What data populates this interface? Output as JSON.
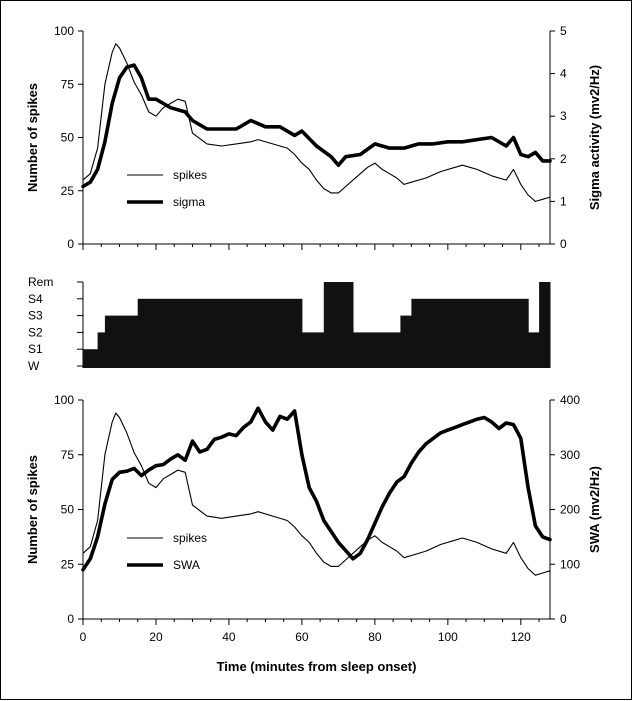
{
  "chart_data": [
    {
      "type": "line",
      "name": "top-panel",
      "xlim": [
        0,
        128
      ],
      "ylim_left": [
        0,
        100
      ],
      "ylim_right": [
        0,
        5
      ],
      "left_ticks": [
        "0",
        "25",
        "50",
        "75",
        "100"
      ],
      "right_ticks": [
        "0",
        "1",
        "2",
        "3",
        "4",
        "5"
      ],
      "ylabel_left": "Number of spikes",
      "ylabel_right": "Sigma activity (mv2/Hz)",
      "legend_position": "lower-left",
      "series": [
        {
          "name": "spikes",
          "axis": "left",
          "style": "thin",
          "x": [
            0,
            2,
            4,
            6,
            8,
            9,
            10,
            12,
            14,
            16,
            18,
            20,
            22,
            24,
            26,
            28,
            30,
            34,
            38,
            42,
            46,
            48,
            52,
            56,
            58,
            60,
            62,
            64,
            66,
            68,
            70,
            72,
            74,
            76,
            78,
            80,
            82,
            84,
            86,
            88,
            90,
            94,
            98,
            102,
            104,
            108,
            112,
            116,
            118,
            120,
            122,
            124,
            126,
            128
          ],
          "values": [
            30,
            33,
            45,
            75,
            90,
            94,
            92,
            85,
            76,
            70,
            62,
            60,
            64,
            66,
            68,
            67,
            52,
            47,
            46,
            47,
            48,
            49,
            47,
            45,
            42,
            38,
            35,
            30,
            26,
            24,
            24,
            27,
            30,
            33,
            36,
            38,
            35,
            33,
            31,
            28,
            29,
            31,
            34,
            36,
            37,
            35,
            32,
            30,
            35,
            28,
            23,
            20,
            21,
            22
          ]
        },
        {
          "name": "sigma",
          "axis": "right",
          "style": "thick",
          "x": [
            0,
            2,
            4,
            6,
            8,
            10,
            12,
            14,
            16,
            18,
            20,
            24,
            26,
            28,
            30,
            34,
            38,
            42,
            46,
            50,
            54,
            58,
            60,
            64,
            68,
            70,
            72,
            76,
            80,
            84,
            88,
            92,
            96,
            100,
            104,
            108,
            112,
            116,
            118,
            120,
            122,
            124,
            126,
            128
          ],
          "values": [
            1.35,
            1.45,
            1.75,
            2.4,
            3.3,
            3.9,
            4.15,
            4.2,
            3.9,
            3.4,
            3.4,
            3.2,
            3.15,
            3.1,
            2.9,
            2.7,
            2.7,
            2.7,
            2.9,
            2.75,
            2.75,
            2.55,
            2.65,
            2.3,
            2.05,
            1.85,
            2.05,
            2.1,
            2.35,
            2.25,
            2.25,
            2.35,
            2.35,
            2.4,
            2.4,
            2.45,
            2.5,
            2.3,
            2.5,
            2.1,
            2.05,
            2.15,
            1.95,
            1.95
          ]
        }
      ]
    },
    {
      "type": "step",
      "name": "hypnogram",
      "xlim": [
        0,
        128
      ],
      "levels": [
        "Rem",
        "S4",
        "S3",
        "S2",
        "S1",
        "W"
      ],
      "segments": [
        {
          "start": 0,
          "end": 4,
          "stage": "S1"
        },
        {
          "start": 4,
          "end": 6,
          "stage": "S2"
        },
        {
          "start": 6,
          "end": 8,
          "stage": "S3"
        },
        {
          "start": 8,
          "end": 15,
          "stage": "S3"
        },
        {
          "start": 15,
          "end": 60,
          "stage": "S4"
        },
        {
          "start": 60,
          "end": 66,
          "stage": "S2"
        },
        {
          "start": 66,
          "end": 74,
          "stage": "Rem"
        },
        {
          "start": 74,
          "end": 87,
          "stage": "S2"
        },
        {
          "start": 87,
          "end": 90,
          "stage": "S3"
        },
        {
          "start": 90,
          "end": 122,
          "stage": "S4"
        },
        {
          "start": 122,
          "end": 125,
          "stage": "S2"
        },
        {
          "start": 125,
          "end": 128,
          "stage": "Rem"
        }
      ]
    },
    {
      "type": "line",
      "name": "bottom-panel",
      "xlim": [
        0,
        128
      ],
      "ylim_left": [
        0,
        100
      ],
      "ylim_right": [
        0,
        400
      ],
      "left_ticks": [
        "0",
        "25",
        "50",
        "75",
        "100"
      ],
      "right_ticks": [
        "0",
        "100",
        "200",
        "300",
        "400"
      ],
      "x_ticks": [
        "0",
        "20",
        "40",
        "60",
        "80",
        "100",
        "120"
      ],
      "ylabel_left": "Number of spikes",
      "ylabel_right": "SWA (mv2/Hz)",
      "xlabel": "Time (minutes from sleep onset)",
      "legend_position": "lower-left",
      "series": [
        {
          "name": "spikes",
          "axis": "left",
          "style": "thin",
          "x": [
            0,
            2,
            4,
            6,
            8,
            9,
            10,
            12,
            14,
            16,
            18,
            20,
            22,
            24,
            26,
            28,
            30,
            34,
            38,
            42,
            46,
            48,
            52,
            56,
            58,
            60,
            62,
            64,
            66,
            68,
            70,
            72,
            74,
            76,
            78,
            80,
            82,
            84,
            86,
            88,
            90,
            94,
            98,
            102,
            104,
            108,
            112,
            116,
            118,
            120,
            122,
            124,
            126,
            128
          ],
          "values": [
            30,
            33,
            45,
            75,
            90,
            94,
            92,
            85,
            76,
            70,
            62,
            60,
            64,
            66,
            68,
            67,
            52,
            47,
            46,
            47,
            48,
            49,
            47,
            45,
            42,
            38,
            35,
            30,
            26,
            24,
            24,
            27,
            30,
            33,
            36,
            38,
            35,
            33,
            31,
            28,
            29,
            31,
            34,
            36,
            37,
            35,
            32,
            30,
            35,
            28,
            23,
            20,
            21,
            22
          ]
        },
        {
          "name": "SWA",
          "axis": "right",
          "style": "thick",
          "x": [
            0,
            2,
            4,
            6,
            8,
            10,
            12,
            14,
            16,
            18,
            20,
            22,
            24,
            26,
            28,
            30,
            32,
            34,
            36,
            38,
            40,
            42,
            44,
            46,
            48,
            50,
            52,
            54,
            56,
            58,
            60,
            62,
            64,
            66,
            68,
            70,
            72,
            74,
            76,
            78,
            80,
            82,
            84,
            86,
            88,
            90,
            92,
            94,
            96,
            98,
            100,
            102,
            104,
            106,
            108,
            110,
            112,
            114,
            116,
            118,
            120,
            122,
            124,
            126,
            128
          ],
          "values": [
            90,
            110,
            150,
            210,
            255,
            268,
            270,
            275,
            262,
            272,
            280,
            282,
            292,
            300,
            290,
            325,
            305,
            310,
            328,
            332,
            338,
            335,
            350,
            360,
            385,
            360,
            345,
            370,
            365,
            380,
            300,
            240,
            215,
            180,
            160,
            140,
            125,
            110,
            120,
            145,
            175,
            205,
            230,
            250,
            260,
            285,
            305,
            320,
            330,
            340,
            345,
            350,
            355,
            360,
            365,
            368,
            360,
            348,
            358,
            355,
            330,
            240,
            170,
            150,
            145
          ]
        }
      ]
    }
  ]
}
